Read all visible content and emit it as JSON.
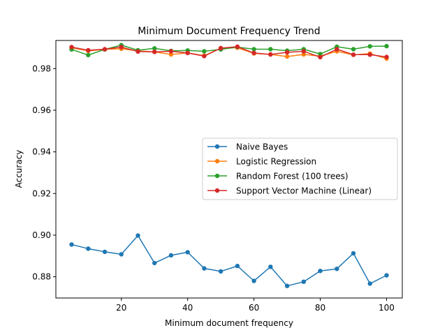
{
  "chart_data": {
    "type": "line",
    "title": "Minimum Document Frequency Trend",
    "xlabel": "Minimum document frequency",
    "ylabel": "Accuracy",
    "xlim": [
      0.25,
      104.75
    ],
    "ylim": [
      0.8698,
      0.9935
    ],
    "xticks": [
      20,
      40,
      60,
      80,
      100
    ],
    "xtick_labels": [
      "20",
      "40",
      "60",
      "80",
      "100"
    ],
    "yticks": [
      0.88,
      0.9,
      0.92,
      0.94,
      0.96,
      0.98
    ],
    "ytick_labels": [
      "0.88",
      "0.90",
      "0.92",
      "0.94",
      "0.96",
      "0.98"
    ],
    "grid": false,
    "legend_position": "center-right",
    "x": [
      5,
      10,
      15,
      20,
      25,
      30,
      35,
      40,
      45,
      50,
      55,
      60,
      65,
      70,
      75,
      80,
      85,
      90,
      95,
      100
    ],
    "series": [
      {
        "name": "Naive Bayes",
        "color": "#1f77b4",
        "values": [
          0.8955,
          0.8935,
          0.892,
          0.8908,
          0.8998,
          0.8866,
          0.8903,
          0.8918,
          0.884,
          0.8826,
          0.8852,
          0.878,
          0.8848,
          0.8756,
          0.8776,
          0.8828,
          0.8838,
          0.8913,
          0.8767,
          0.8807
        ]
      },
      {
        "name": "Logistic Regression",
        "color": "#ff7f0e",
        "values": [
          0.99,
          0.9885,
          0.9892,
          0.9895,
          0.9885,
          0.988,
          0.9868,
          0.9875,
          0.9862,
          0.9898,
          0.99,
          0.9873,
          0.9868,
          0.9858,
          0.9868,
          0.986,
          0.9883,
          0.9866,
          0.9872,
          0.9848
        ]
      },
      {
        "name": "Random Forest (100 trees)",
        "color": "#2ca02c",
        "values": [
          0.9892,
          0.9865,
          0.9892,
          0.9913,
          0.9888,
          0.9897,
          0.9885,
          0.9887,
          0.9883,
          0.9892,
          0.9903,
          0.9893,
          0.9893,
          0.9886,
          0.9893,
          0.987,
          0.9905,
          0.9893,
          0.9907,
          0.9908
        ]
      },
      {
        "name": "Support Vector Machine (Linear)",
        "color": "#d62728",
        "values": [
          0.9903,
          0.9888,
          0.9893,
          0.9903,
          0.9882,
          0.988,
          0.9883,
          0.9875,
          0.986,
          0.9898,
          0.9905,
          0.9875,
          0.9868,
          0.9878,
          0.9883,
          0.9855,
          0.9893,
          0.9867,
          0.9867,
          0.9856
        ]
      }
    ]
  }
}
